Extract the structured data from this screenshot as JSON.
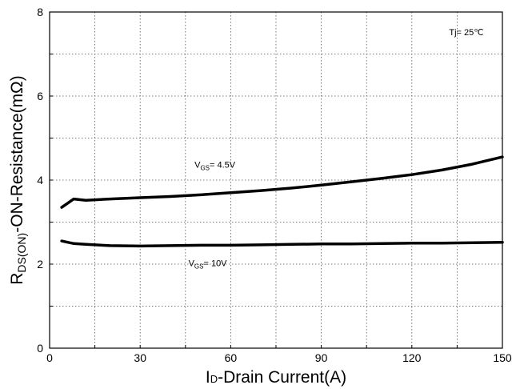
{
  "chart_data": {
    "type": "line",
    "title": "",
    "xlabel": {
      "prefix": "I",
      "sub": "D",
      "rest": "-Drain Current(A)"
    },
    "ylabel": {
      "prefix": "R",
      "sub": "DS(ON)",
      "rest": "-ON-Resistance(mΩ)"
    },
    "xlim": [
      0,
      150
    ],
    "ylim": [
      0,
      8
    ],
    "x_ticks": [
      0,
      30,
      60,
      90,
      120,
      150
    ],
    "y_ticks": [
      0,
      2,
      4,
      6,
      8
    ],
    "x_minor_step": 15,
    "y_minor_step": 1,
    "grid": true,
    "grid_style": "dotted",
    "annotation": {
      "text": "Tj= 25℃"
    },
    "series": [
      {
        "label": {
          "base": "V",
          "sub": "GS",
          "tail": "= 4.5V"
        },
        "label_anchor": {
          "x": 48,
          "y": 4.3
        },
        "points": [
          [
            4,
            3.35
          ],
          [
            8,
            3.55
          ],
          [
            12,
            3.52
          ],
          [
            20,
            3.55
          ],
          [
            30,
            3.58
          ],
          [
            40,
            3.61
          ],
          [
            50,
            3.65
          ],
          [
            60,
            3.7
          ],
          [
            70,
            3.75
          ],
          [
            80,
            3.81
          ],
          [
            90,
            3.88
          ],
          [
            100,
            3.96
          ],
          [
            110,
            4.04
          ],
          [
            120,
            4.13
          ],
          [
            130,
            4.24
          ],
          [
            140,
            4.38
          ],
          [
            150,
            4.55
          ]
        ]
      },
      {
        "label": {
          "base": "V",
          "sub": "GS",
          "tail": "= 10V"
        },
        "label_anchor": {
          "x": 46,
          "y": 1.95
        },
        "points": [
          [
            4,
            2.55
          ],
          [
            8,
            2.49
          ],
          [
            12,
            2.47
          ],
          [
            20,
            2.44
          ],
          [
            30,
            2.43
          ],
          [
            40,
            2.44
          ],
          [
            50,
            2.45
          ],
          [
            60,
            2.45
          ],
          [
            70,
            2.46
          ],
          [
            80,
            2.47
          ],
          [
            90,
            2.48
          ],
          [
            100,
            2.48
          ],
          [
            110,
            2.49
          ],
          [
            120,
            2.5
          ],
          [
            130,
            2.5
          ],
          [
            140,
            2.51
          ],
          [
            150,
            2.52
          ]
        ]
      }
    ]
  }
}
